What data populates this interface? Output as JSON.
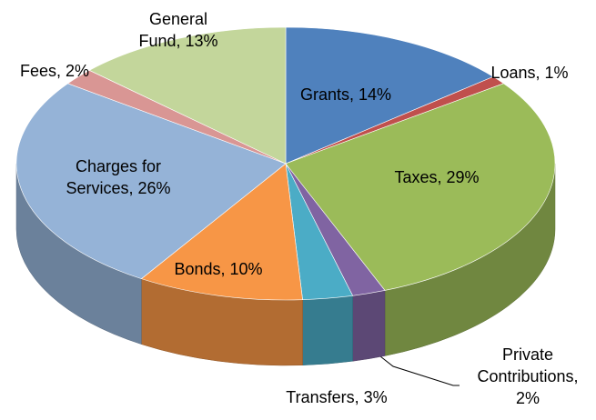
{
  "chart_data": {
    "type": "pie3d",
    "categories": [
      "Grants,",
      "Loans,",
      "Taxes,",
      "Private Contributions,",
      "Transfers,",
      "Bonds,",
      "Charges for Services,",
      "Fees,",
      "General Fund,"
    ],
    "values": [
      14,
      1,
      29,
      2,
      3,
      10,
      26,
      2,
      13
    ],
    "value_labels": [
      "14%",
      "1%",
      "29%",
      "2%",
      "3%",
      "10%",
      "26%",
      "2%",
      "13%"
    ],
    "colors": [
      "#4f81bd",
      "#c0504d",
      "#9bbb59",
      "#8064a2",
      "#4bacc6",
      "#f79646",
      "#95b3d7",
      "#d99694",
      "#c3d69b"
    ]
  }
}
